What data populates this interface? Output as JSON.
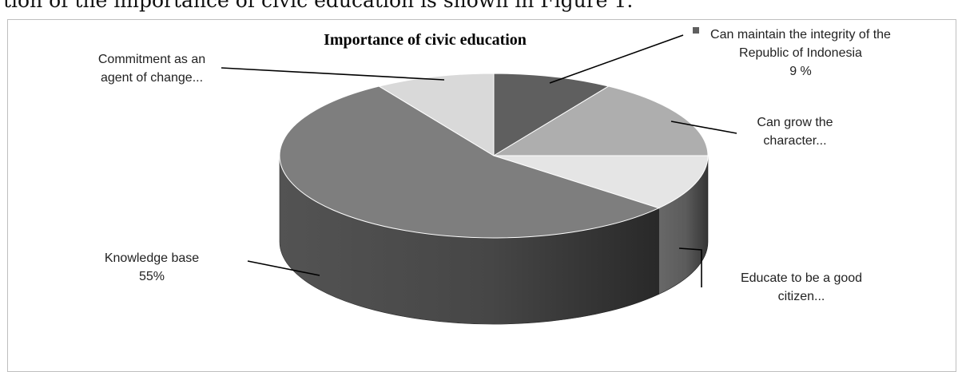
{
  "caption_line": "tion of the importance of civic education is shown in Figure 1.",
  "chart_data": {
    "type": "pie",
    "title": "Importance of civic education",
    "slices": [
      {
        "label": "Can maintain the integrity of the Republic of Indonesia",
        "display_lines": [
          "Can maintain the integrity of the",
          "Republic of Indonesia",
          "9 %"
        ],
        "value": 9,
        "color": "#5f5f5f",
        "side_color": "#3d3d3d",
        "legend_marker": true
      },
      {
        "label": "Can grow the character",
        "display_lines": [
          "Can grow the",
          "character..."
        ],
        "value": 16,
        "color": "#aeaeae",
        "side_color": "#7a7a7a"
      },
      {
        "label": "Educate to be a good citizen",
        "display_lines": [
          "Educate to be a good",
          "citizen..."
        ],
        "value": 11,
        "color": "#e5e5e5",
        "side_color": "#606060"
      },
      {
        "label": "Knowledge base",
        "display_lines": [
          "Knowledge base",
          "55%"
        ],
        "value": 55,
        "color": "#7e7e7e",
        "side_color": "#4a4a4a"
      },
      {
        "label": "Commitment as an agent of change",
        "display_lines": [
          "Commitment as an",
          "agent of change..."
        ],
        "value": 9,
        "color": "#d9d9d9",
        "side_color": "#9a9a9a"
      }
    ]
  }
}
